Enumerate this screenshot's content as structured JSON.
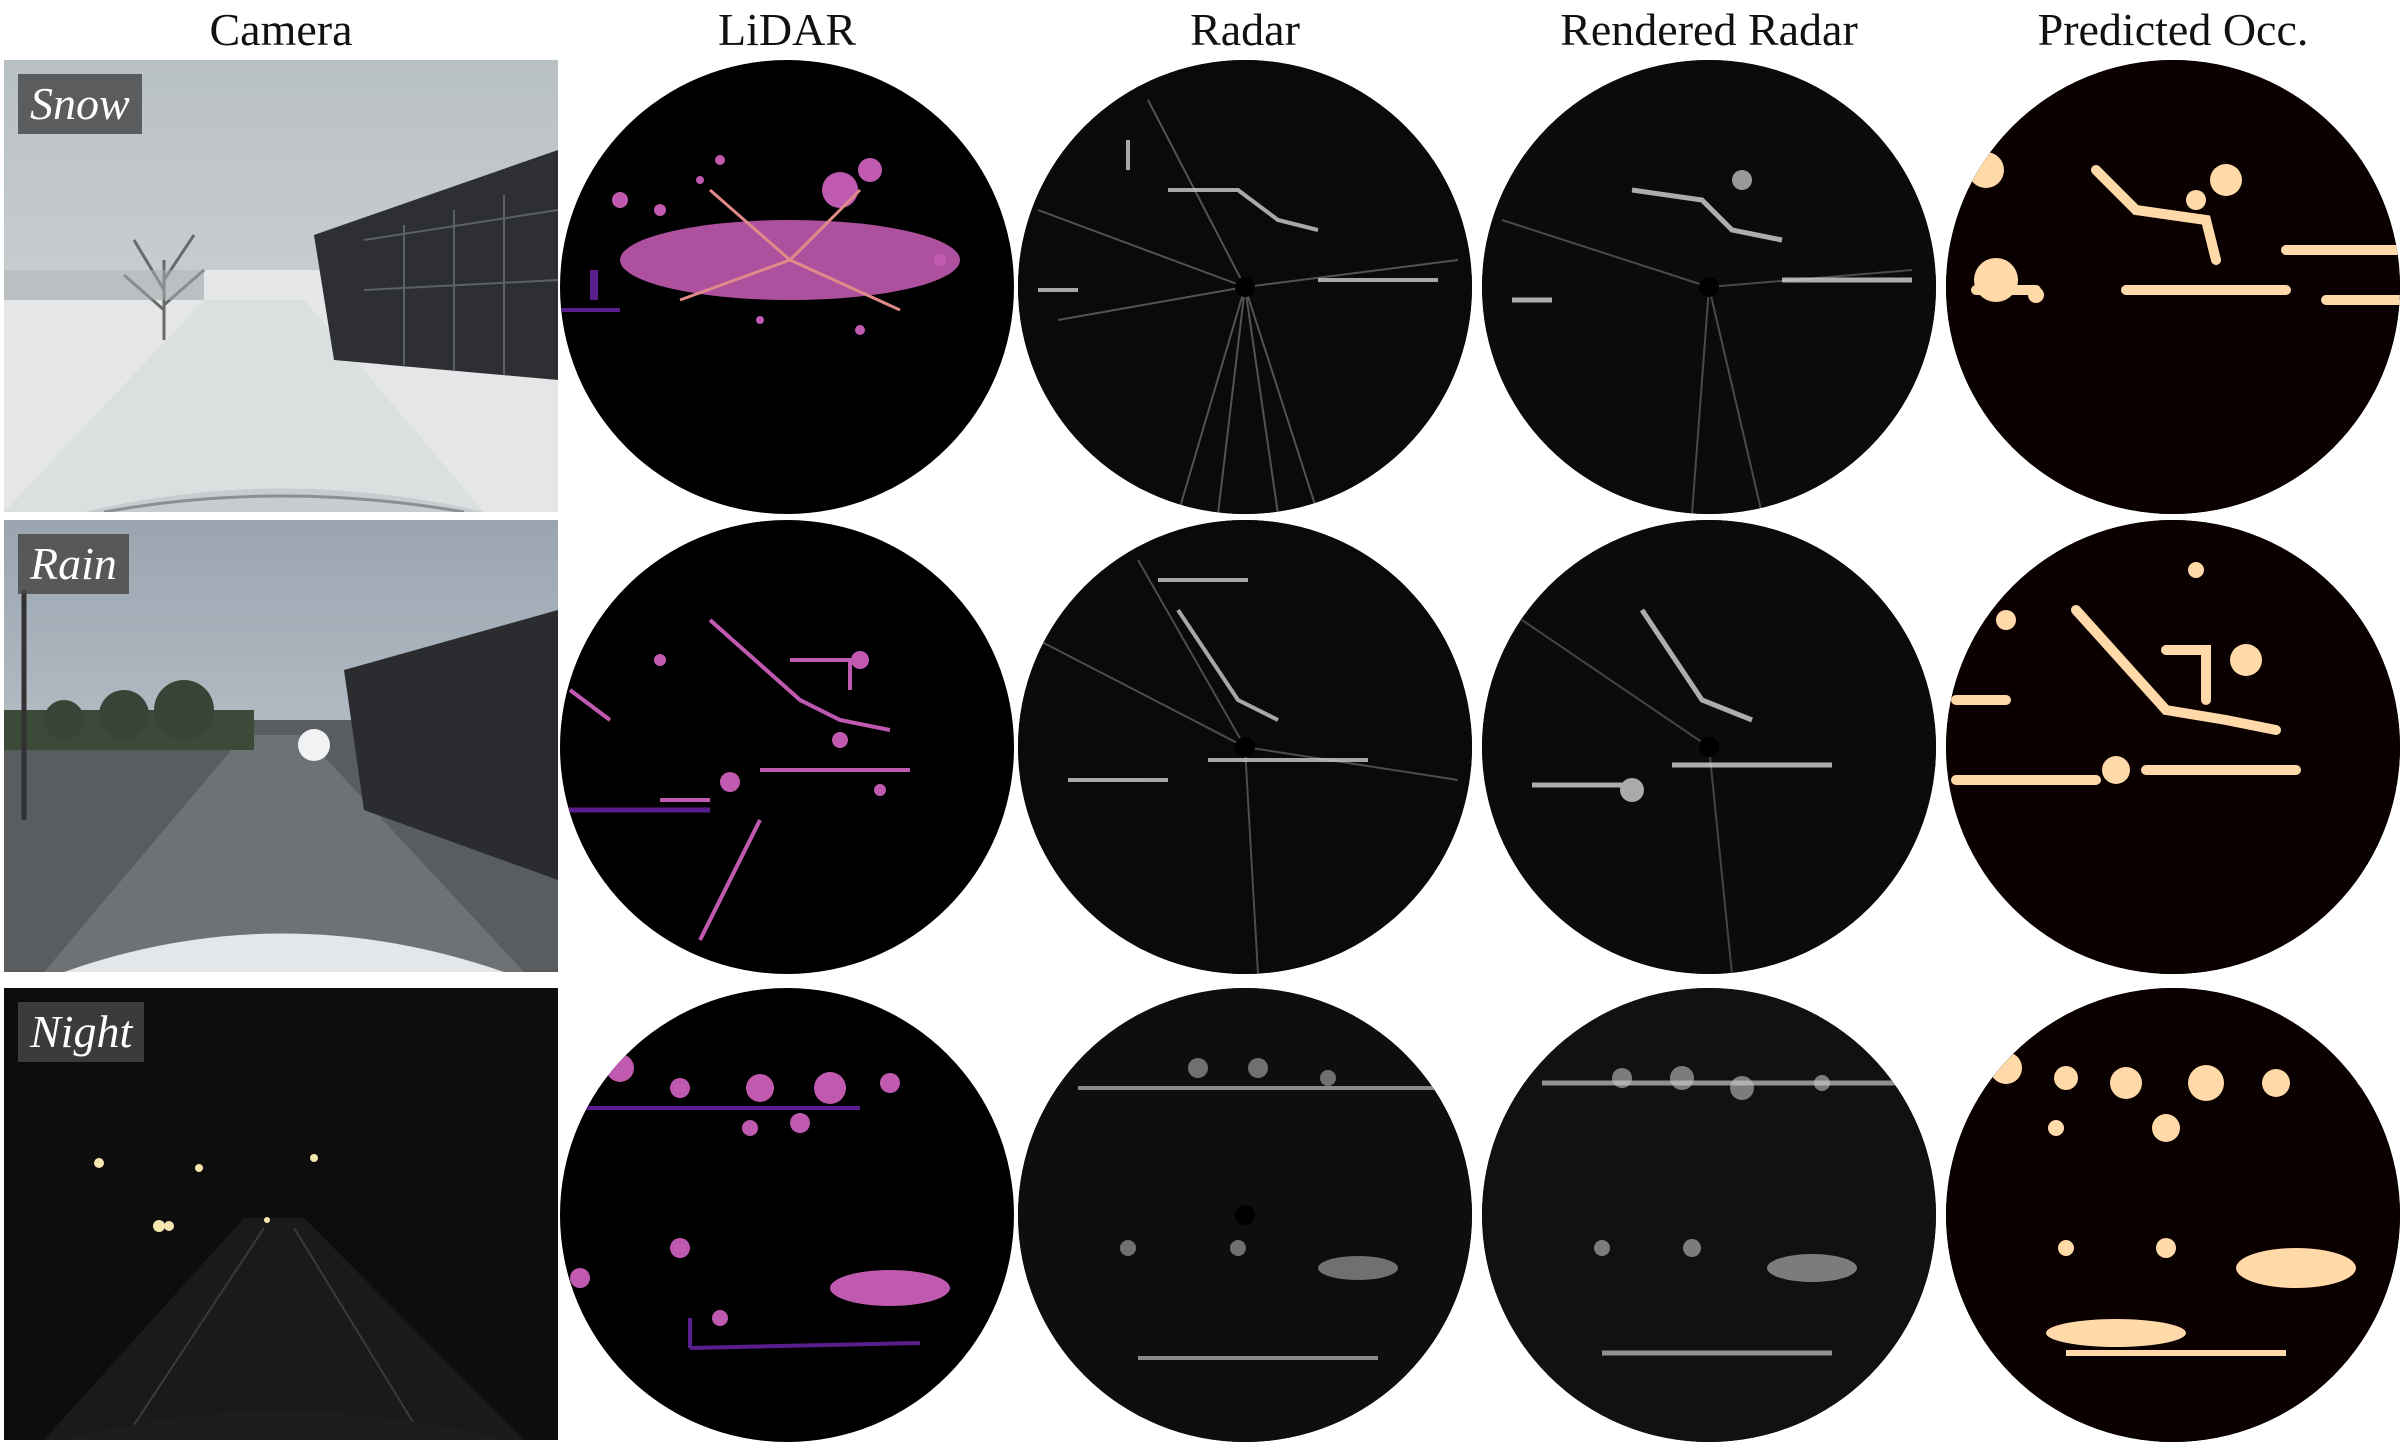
{
  "columns": {
    "camera": "Camera",
    "lidar": "LiDAR",
    "radar": "Radar",
    "rendered_radar": "Rendered Radar",
    "predicted_occ": "Predicted Occ."
  },
  "rows": [
    {
      "condition": "Snow"
    },
    {
      "condition": "Rain"
    },
    {
      "condition": "Night"
    }
  ],
  "colors": {
    "lidar_points": "#c05ab0",
    "lidar_dark": "#5a1e8c",
    "occupancy": "#ffd9a8",
    "radar_returns": "#bdbdbd"
  }
}
